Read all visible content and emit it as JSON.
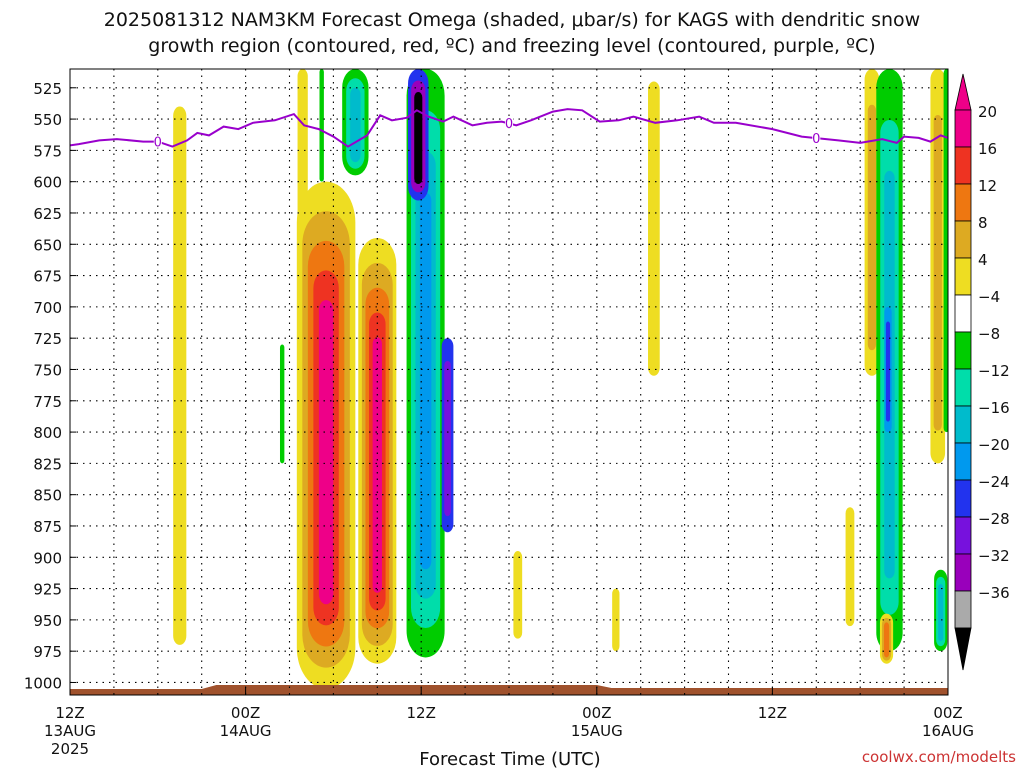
{
  "title_line1": "2025081312 NAM3KM Forecast Omega (shaded, μbar/s) for KAGS with dendritic snow",
  "title_line2": "growth region (contoured, red, ºC) and freezing level (contoured, purple, ºC)",
  "credit": "coolwx.com/modelts",
  "chart_data": {
    "type": "heatmap",
    "xlabel": "Forecast Time (UTC)",
    "ylabel": "",
    "x_range_hours": [
      0,
      60
    ],
    "y_range_mb": [
      1010,
      510
    ],
    "y_ticks": [
      525,
      550,
      575,
      600,
      625,
      650,
      675,
      700,
      725,
      750,
      775,
      800,
      825,
      850,
      875,
      900,
      925,
      950,
      975,
      1000
    ],
    "x_ticks": [
      {
        "hour": 0,
        "l1": "12Z",
        "l2": "13AUG",
        "l3": "2025"
      },
      {
        "hour": 12,
        "l1": "00Z",
        "l2": "14AUG",
        "l3": ""
      },
      {
        "hour": 24,
        "l1": "12Z",
        "l2": "",
        "l3": ""
      },
      {
        "hour": 36,
        "l1": "00Z",
        "l2": "15AUG",
        "l3": ""
      },
      {
        "hour": 48,
        "l1": "12Z",
        "l2": "",
        "l3": ""
      },
      {
        "hour": 60,
        "l1": "00Z",
        "l2": "16AUG",
        "l3": ""
      }
    ],
    "grid": true,
    "colorbar": {
      "labels": [
        "20",
        "16",
        "12",
        "8",
        "4",
        "−4",
        "−8",
        "−12",
        "−16",
        "−20",
        "−24",
        "−28",
        "−32",
        "−36"
      ],
      "colors": [
        "#ee0088",
        "#ee3322",
        "#ee7711",
        "#ddaa22",
        "#eedd22",
        "#ffffff",
        "#00cc00",
        "#00ddaa",
        "#00bbcc",
        "#0099ee",
        "#2233ee",
        "#7711dd",
        "#9900bb",
        "#aaaaaa"
      ]
    },
    "freezing_level_label": "0",
    "freezing_level": [
      [
        0.0,
        571
      ],
      [
        0.6,
        570
      ],
      [
        2.0,
        567
      ],
      [
        3.2,
        566
      ],
      [
        5.0,
        568
      ],
      [
        6.0,
        568
      ],
      [
        7.0,
        572
      ],
      [
        8.0,
        567
      ],
      [
        8.7,
        561
      ],
      [
        9.5,
        563
      ],
      [
        10.5,
        556
      ],
      [
        11.5,
        558
      ],
      [
        12.5,
        553
      ],
      [
        14.0,
        551
      ],
      [
        15.3,
        546
      ],
      [
        16.0,
        555
      ],
      [
        17.0,
        558
      ],
      [
        18.0,
        564
      ],
      [
        19.0,
        572
      ],
      [
        20.3,
        563
      ],
      [
        21.2,
        547
      ],
      [
        22.0,
        551
      ],
      [
        23.0,
        549
      ],
      [
        23.7,
        543
      ],
      [
        24.5,
        548
      ],
      [
        25.5,
        552
      ],
      [
        26.2,
        548
      ],
      [
        27.5,
        555
      ],
      [
        28.5,
        553
      ],
      [
        29.5,
        552
      ],
      [
        30.5,
        555
      ],
      [
        31.5,
        551
      ],
      [
        33.0,
        544
      ],
      [
        34.0,
        542
      ],
      [
        35.0,
        543
      ],
      [
        36.2,
        552
      ],
      [
        37.5,
        551
      ],
      [
        38.5,
        548
      ],
      [
        40.0,
        553
      ],
      [
        41.5,
        551
      ],
      [
        43.0,
        548
      ],
      [
        44.0,
        553
      ],
      [
        45.5,
        553
      ],
      [
        48.0,
        558
      ],
      [
        50.0,
        564
      ],
      [
        52.5,
        567
      ],
      [
        54.0,
        569
      ],
      [
        55.5,
        566
      ],
      [
        56.5,
        569
      ],
      [
        57.0,
        564
      ],
      [
        58.0,
        565
      ],
      [
        58.8,
        568
      ],
      [
        59.5,
        563
      ],
      [
        60.0,
        565
      ]
    ],
    "omega_features": [
      {
        "hour": 7.5,
        "top": 540,
        "bottom": 970,
        "halfwidth": 0.45,
        "levels": [
          4
        ]
      },
      {
        "hour": 14.5,
        "top": 730,
        "bottom": 825,
        "halfwidth": 0.15,
        "levels": [
          -4
        ]
      },
      {
        "hour": 15.9,
        "top": 510,
        "bottom": 730,
        "halfwidth": 0.35,
        "levels": [
          4
        ]
      },
      {
        "hour": 17.5,
        "top": 600,
        "bottom": 1005,
        "halfwidth": 2.0,
        "levels": [
          4,
          8,
          12,
          16,
          20
        ]
      },
      {
        "hour": 21.0,
        "top": 645,
        "bottom": 985,
        "halfwidth": 1.3,
        "levels": [
          4,
          8,
          12,
          16,
          20
        ]
      },
      {
        "hour": 17.2,
        "top": 510,
        "bottom": 600,
        "halfwidth": 0.15,
        "levels": [
          -4
        ]
      },
      {
        "hour": 19.5,
        "top": 510,
        "bottom": 595,
        "halfwidth": 0.9,
        "levels": [
          -4,
          -8,
          -12
        ]
      },
      {
        "hour": 24.3,
        "top": 510,
        "bottom": 980,
        "halfwidth": 1.3,
        "levels": [
          -4,
          -8,
          -12,
          -16
        ]
      },
      {
        "hour": 23.8,
        "top": 510,
        "bottom": 615,
        "halfwidth": 0.7,
        "levels": [
          -20,
          -28,
          -36
        ]
      },
      {
        "hour": 25.8,
        "top": 725,
        "bottom": 880,
        "halfwidth": 0.4,
        "levels": [
          -20,
          -24
        ]
      },
      {
        "hour": 30.6,
        "top": 895,
        "bottom": 965,
        "halfwidth": 0.3,
        "levels": [
          4
        ]
      },
      {
        "hour": 37.3,
        "top": 925,
        "bottom": 975,
        "halfwidth": 0.25,
        "levels": [
          4
        ]
      },
      {
        "hour": 39.9,
        "top": 520,
        "bottom": 755,
        "halfwidth": 0.4,
        "levels": [
          4
        ]
      },
      {
        "hour": 53.3,
        "top": 860,
        "bottom": 955,
        "halfwidth": 0.3,
        "levels": [
          4
        ]
      },
      {
        "hour": 54.8,
        "top": 510,
        "bottom": 755,
        "halfwidth": 0.5,
        "levels": [
          4,
          8
        ]
      },
      {
        "hour": 56.0,
        "top": 510,
        "bottom": 975,
        "halfwidth": 0.9,
        "levels": [
          -4,
          -8,
          -12
        ]
      },
      {
        "hour": 55.9,
        "top": 700,
        "bottom": 800,
        "halfwidth": 0.25,
        "levels": [
          -16,
          -20
        ]
      },
      {
        "hour": 55.8,
        "top": 945,
        "bottom": 985,
        "halfwidth": 0.45,
        "levels": [
          4,
          8,
          12
        ]
      },
      {
        "hour": 59.3,
        "top": 510,
        "bottom": 825,
        "halfwidth": 0.5,
        "levels": [
          4,
          8
        ]
      },
      {
        "hour": 59.9,
        "top": 510,
        "bottom": 800,
        "halfwidth": 0.2,
        "levels": [
          -4
        ]
      },
      {
        "hour": 59.5,
        "top": 910,
        "bottom": 975,
        "halfwidth": 0.45,
        "levels": [
          -4,
          -8,
          -12
        ]
      }
    ]
  }
}
